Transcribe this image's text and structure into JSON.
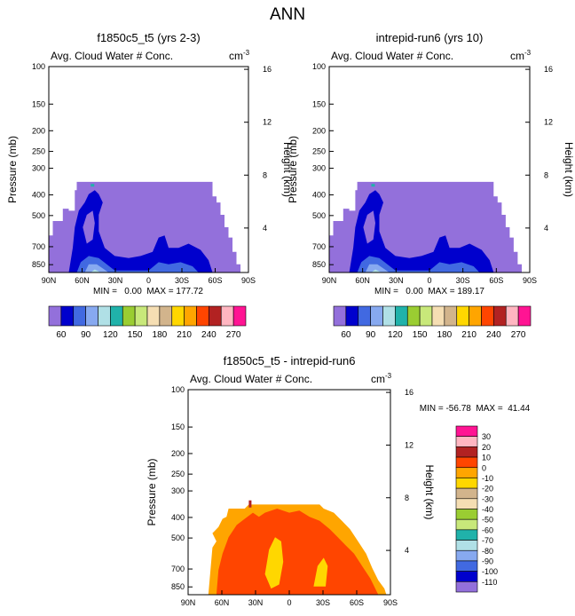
{
  "figure_title": "ANN",
  "chart_data": [
    {
      "type": "heatmap",
      "title": "f1850c5_t5 (yrs 2-3)",
      "subtitle_left": "Avg. Cloud Water # Conc.",
      "units": "cm",
      "units_exp": "-3",
      "ylabel": "Pressure (mb)",
      "ylabel_right": "Height (km)",
      "x_ticks": [
        "90N",
        "60N",
        "30N",
        "0",
        "30S",
        "60S",
        "90S"
      ],
      "p_ticks": [
        "100",
        "150",
        "200",
        "250",
        "300",
        "400",
        "500",
        "700",
        "850"
      ],
      "height_ticks": [
        "16",
        "12",
        "8",
        "4"
      ],
      "stats": "MIN =   0.00  MAX = 177.72",
      "colorbar_labels": [
        "60",
        "90",
        "120",
        "150",
        "180",
        "210",
        "240",
        "270"
      ],
      "colors": [
        "#9370db",
        "#0000cd",
        "#4169e1",
        "#87a9f0",
        "#b0e0e6",
        "#20b2aa",
        "#9acd32",
        "#c8e87a",
        "#f5deb3",
        "#d2b48c",
        "#ffd700",
        "#ffa500",
        "#ff4500",
        "#b22222",
        "#ffb6c1",
        "#ff1493"
      ]
    },
    {
      "type": "heatmap",
      "title": "intrepid-run6 (yrs 10)",
      "subtitle_left": "Avg. Cloud Water # Conc.",
      "units": "cm",
      "units_exp": "-3",
      "ylabel": "Pressure (mb)",
      "ylabel_right": "Height (km)",
      "x_ticks": [
        "90N",
        "60N",
        "30N",
        "0",
        "30S",
        "60S",
        "90S"
      ],
      "p_ticks": [
        "100",
        "150",
        "200",
        "250",
        "300",
        "400",
        "500",
        "700",
        "850"
      ],
      "height_ticks": [
        "16",
        "12",
        "8",
        "4"
      ],
      "stats": "MIN =   0.00  MAX = 189.17",
      "colorbar_labels": [
        "60",
        "90",
        "120",
        "150",
        "180",
        "210",
        "240",
        "270"
      ],
      "colors": [
        "#9370db",
        "#0000cd",
        "#4169e1",
        "#87a9f0",
        "#b0e0e6",
        "#20b2aa",
        "#9acd32",
        "#c8e87a",
        "#f5deb3",
        "#d2b48c",
        "#ffd700",
        "#ffa500",
        "#ff4500",
        "#b22222",
        "#ffb6c1",
        "#ff1493"
      ]
    },
    {
      "type": "heatmap",
      "title": "f1850c5_t5 - intrepid-run6",
      "subtitle_left": "Avg. Cloud Water # Conc.",
      "units": "cm",
      "units_exp": "-3",
      "ylabel": "Pressure (mb)",
      "ylabel_right": "Height (km)",
      "x_ticks": [
        "90N",
        "60N",
        "30N",
        "0",
        "30S",
        "60S",
        "90S"
      ],
      "p_ticks": [
        "100",
        "150",
        "200",
        "250",
        "300",
        "400",
        "500",
        "700",
        "850"
      ],
      "height_ticks": [
        "16",
        "12",
        "8",
        "4"
      ],
      "stats": "MIN = -56.78  MAX =  41.44",
      "colorbar_labels": [
        "30",
        "20",
        "10",
        "0",
        "-10",
        "-20",
        "-30",
        "-40",
        "-50",
        "-60",
        "-70",
        "-80",
        "-90",
        "-100",
        "-110"
      ],
      "colors": [
        "#ff1493",
        "#ffb6c1",
        "#b22222",
        "#ff4500",
        "#ffa500",
        "#ffd700",
        "#d2b48c",
        "#f5deb3",
        "#9acd32",
        "#c8e87a",
        "#20b2aa",
        "#b0e0e6",
        "#87a9f0",
        "#4169e1",
        "#0000cd",
        "#9370db"
      ]
    }
  ]
}
